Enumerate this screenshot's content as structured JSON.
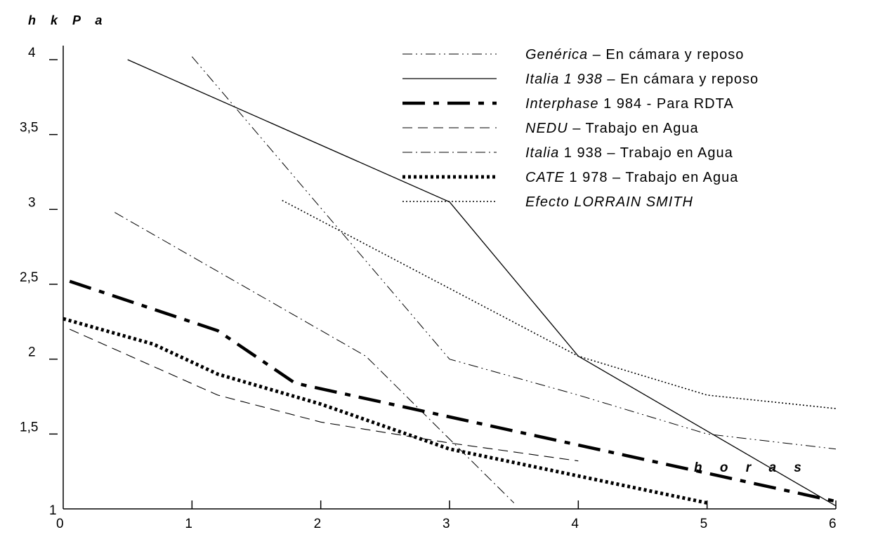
{
  "chart_data": {
    "type": "line",
    "ylabel": "h k P a",
    "xlabel": "h o r a s",
    "xlim": [
      0,
      6
    ],
    "ylim": [
      1,
      4
    ],
    "x_ticks": [
      "0",
      "1",
      "2",
      "3",
      "4",
      "5",
      "6"
    ],
    "y_ticks": [
      {
        "value": 1,
        "label": "1"
      },
      {
        "value": 1.5,
        "label": "1,5"
      },
      {
        "value": 2,
        "label": "2"
      },
      {
        "value": 2.5,
        "label": "2,5"
      },
      {
        "value": 3,
        "label": "3"
      },
      {
        "value": 3.5,
        "label": "3,5"
      },
      {
        "value": 4,
        "label": "4"
      }
    ],
    "grid": false,
    "legend_position": "top-right",
    "series": [
      {
        "id": "generica",
        "name_italic": "Genérica",
        "name_rest": "  –  En cámara y reposo",
        "style": "dashdotdot",
        "x": [
          1,
          3,
          4,
          5,
          6
        ],
        "y": [
          4.02,
          2.0,
          1.76,
          1.5,
          1.4
        ]
      },
      {
        "id": "italia_camara",
        "name_italic": "Italia 1 938",
        "name_rest": " – En cámara y reposo",
        "style": "solid",
        "x": [
          0.5,
          3,
          4,
          6
        ],
        "y": [
          4.0,
          3.05,
          2.02,
          1.02
        ]
      },
      {
        "id": "interphase",
        "name_italic": "Interphase",
        "name_rest": " 1 984 - Para RDTA",
        "style": "thick-dashdot",
        "x": [
          0.05,
          1.2,
          1.8,
          6
        ],
        "y": [
          2.52,
          2.19,
          1.84,
          1.05
        ]
      },
      {
        "id": "nedu",
        "name_italic": "NEDU",
        "name_rest": " – Trabajo en Agua",
        "style": "dashed",
        "x": [
          0.05,
          1.2,
          2,
          3,
          4
        ],
        "y": [
          2.2,
          1.76,
          1.58,
          1.44,
          1.32
        ]
      },
      {
        "id": "italia_agua",
        "name_italic": "Italia",
        "name_rest": " 1 938 – Trabajo en Agua",
        "style": "dashdot",
        "x": [
          0.4,
          2.35,
          3.5
        ],
        "y": [
          2.98,
          2.02,
          1.04
        ]
      },
      {
        "id": "cate",
        "name_italic": "CATE",
        "name_rest": " 1  978 – Trabajo en Agua",
        "style": "thick-dotted",
        "x": [
          0.0,
          0.7,
          1.2,
          2,
          3,
          4,
          5
        ],
        "y": [
          2.27,
          2.1,
          1.9,
          1.7,
          1.4,
          1.22,
          1.04
        ]
      },
      {
        "id": "lorrain",
        "name_italic": "Efecto LORRAIN SMITH",
        "name_rest": "",
        "style": "dotted",
        "x": [
          1.7,
          4,
          5,
          6
        ],
        "y": [
          3.06,
          2.02,
          1.76,
          1.67
        ]
      }
    ]
  }
}
